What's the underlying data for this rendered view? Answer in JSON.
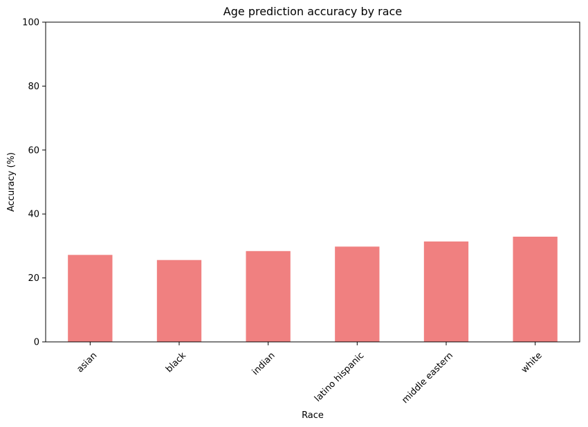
{
  "chart_data": {
    "type": "bar",
    "title": "Age prediction accuracy by race",
    "xlabel": "Race",
    "ylabel": "Accuracy (%)",
    "categories": [
      "asian",
      "black",
      "indian",
      "latino hispanic",
      "middle eastern",
      "white"
    ],
    "values": [
      27.2,
      25.6,
      28.4,
      29.8,
      31.4,
      32.9
    ],
    "ylim": [
      0,
      100
    ],
    "yticks": [
      0,
      20,
      40,
      60,
      80,
      100
    ],
    "grid": false,
    "bar_color": "#f08080"
  }
}
